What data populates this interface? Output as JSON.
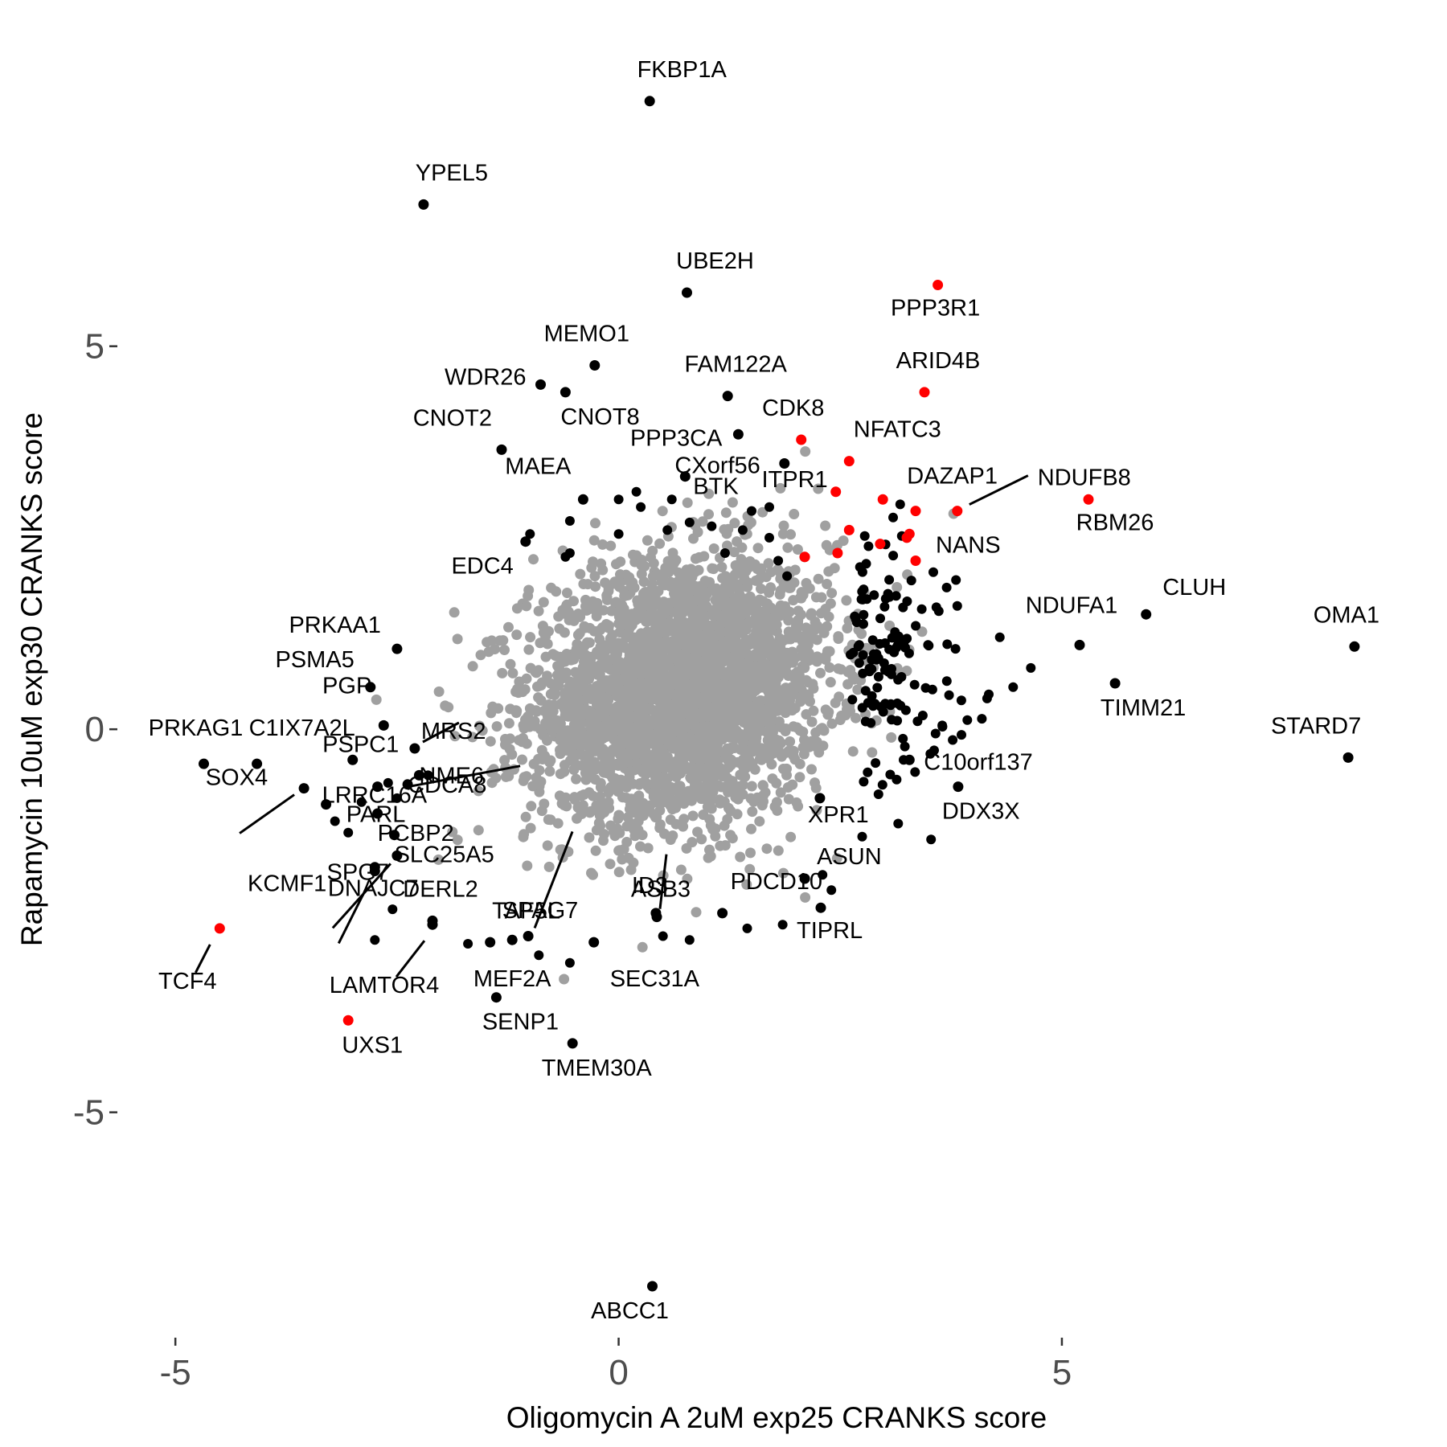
{
  "chart_data": {
    "type": "scatter",
    "xlabel": "Oligomycin A 2uM exp25 CRANKS score",
    "ylabel": "Rapamycin 10uM exp30 CRANKS score",
    "xlim": [
      -5.6,
      8.8
    ],
    "ylim": [
      -7.9,
      9.1
    ],
    "x_ticks": [
      -5,
      0,
      5
    ],
    "y_ticks": [
      -5,
      0,
      5
    ],
    "grid": false,
    "legend": "none",
    "colors": {
      "background": "#a0a0a0",
      "highlight": "#000000",
      "hit": "#ff0000"
    },
    "background_cloud": {
      "center": [
        0.7,
        0.5
      ],
      "spread": [
        0.85,
        0.85
      ],
      "count": 3200,
      "color": "#a0a0a0"
    },
    "labeled_points": [
      {
        "label": "FKBP1A",
        "x": 0.35,
        "y": 8.2,
        "color": "#000000"
      },
      {
        "label": "YPEL5",
        "x": -2.2,
        "y": 6.85,
        "color": "#000000"
      },
      {
        "label": "UBE2H",
        "x": 0.77,
        "y": 5.7,
        "color": "#000000"
      },
      {
        "label": "PPP3R1",
        "x": 3.6,
        "y": 5.8,
        "color": "#ff0000"
      },
      {
        "label": "MEMO1",
        "x": -0.27,
        "y": 4.75,
        "color": "#000000"
      },
      {
        "label": "WDR26",
        "x": -0.88,
        "y": 4.5,
        "color": "#000000"
      },
      {
        "label": "CNOT8",
        "x": -0.6,
        "y": 4.4,
        "color": "#000000"
      },
      {
        "label": "FAM122A",
        "x": 1.23,
        "y": 4.35,
        "color": "#000000"
      },
      {
        "label": "ARID4B",
        "x": 3.45,
        "y": 4.4,
        "color": "#ff0000"
      },
      {
        "label": "PPP3CA",
        "x": 1.35,
        "y": 3.85,
        "color": "#000000"
      },
      {
        "label": "CDK8",
        "x": 2.06,
        "y": 3.78,
        "color": "#ff0000"
      },
      {
        "label": "CNOT2",
        "x": -1.32,
        "y": 3.65,
        "color": "#000000"
      },
      {
        "label": "NFATC3",
        "x": 2.6,
        "y": 3.5,
        "color": "#ff0000"
      },
      {
        "label": "CXorf56",
        "x": 1.87,
        "y": 3.47,
        "color": "#000000"
      },
      {
        "label": "BTK",
        "x": 0.75,
        "y": 3.3,
        "color": "#000000"
      },
      {
        "label": "MAEA",
        "x": -0.4,
        "y": 3.0,
        "color": "#000000"
      },
      {
        "label": "ITPR1",
        "x": 2.45,
        "y": 3.1,
        "color": "#ff0000"
      },
      {
        "label": "DAZAP1",
        "x": 2.98,
        "y": 3.0,
        "color": "#ff0000"
      },
      {
        "label": "NDUFB8",
        "x": 3.82,
        "y": 2.85,
        "color": "#ff0000"
      },
      {
        "label": "RBM26",
        "x": 5.3,
        "y": 3.0,
        "color": "#ff0000"
      },
      {
        "label": "NANS",
        "x": 3.35,
        "y": 2.2,
        "color": "#ff0000"
      },
      {
        "label": "EDC4",
        "x": -1.05,
        "y": 2.45,
        "color": "#000000"
      },
      {
        "label": "CLUH",
        "x": 5.95,
        "y": 1.5,
        "color": "#000000"
      },
      {
        "label": "NDUFA1",
        "x": 5.2,
        "y": 1.1,
        "color": "#000000"
      },
      {
        "label": "OMA1",
        "x": 8.3,
        "y": 1.08,
        "color": "#000000"
      },
      {
        "label": "TIMM21",
        "x": 5.6,
        "y": 0.6,
        "color": "#000000"
      },
      {
        "label": "STARD7",
        "x": 8.23,
        "y": -0.37,
        "color": "#000000"
      },
      {
        "label": "PRKAA1",
        "x": -2.5,
        "y": 1.05,
        "color": "#000000"
      },
      {
        "label": "PSMA5",
        "x": -2.8,
        "y": 0.55,
        "color": "#000000"
      },
      {
        "label": "PGP",
        "x": -2.65,
        "y": 0.05,
        "color": "#000000"
      },
      {
        "label": "MRS2",
        "x": -2.3,
        "y": -0.25,
        "color": "#000000"
      },
      {
        "label": "NME6",
        "x": -2.25,
        "y": -0.6,
        "color": "#000000"
      },
      {
        "label": "CDCA8",
        "x": -2.38,
        "y": -0.72,
        "color": "#000000"
      },
      {
        "label": "PSPC1",
        "x": -3.0,
        "y": -0.4,
        "color": "#000000"
      },
      {
        "label": "PRKAG1",
        "x": -4.68,
        "y": -0.45,
        "color": "#000000"
      },
      {
        "label": "C1IX7A2L",
        "x": -4.08,
        "y": -0.45,
        "color": "#000000"
      },
      {
        "label": "PARL",
        "x": -2.72,
        "y": -0.75,
        "color": "#000000"
      },
      {
        "label": "SOX4",
        "x": -3.55,
        "y": -0.77,
        "color": "#000000"
      },
      {
        "label": "LRRC16A",
        "x": -3.3,
        "y": -0.98,
        "color": "#000000"
      },
      {
        "label": "PCBP2",
        "x": -2.72,
        "y": -1.1,
        "color": "#000000"
      },
      {
        "label": "TAF5L",
        "x": -1.02,
        "y": -2.7,
        "color": "#000000"
      },
      {
        "label": "SLC25A5",
        "x": -2.53,
        "y": -1.38,
        "color": "#000000"
      },
      {
        "label": "SPG7",
        "x": -2.5,
        "y": -1.65,
        "color": "#000000"
      },
      {
        "label": "DNAJC7",
        "x": -2.75,
        "y": -1.8,
        "color": "#000000"
      },
      {
        "label": "DERL2",
        "x": -2.1,
        "y": -2.5,
        "color": "#000000"
      },
      {
        "label": "SPAG7",
        "x": -1.45,
        "y": -2.78,
        "color": "#000000"
      },
      {
        "label": "ASB3",
        "x": 0.43,
        "y": -2.45,
        "color": "#000000"
      },
      {
        "label": "ID3",
        "x": 0.42,
        "y": -2.4,
        "color": "#000000"
      },
      {
        "label": "PDCD10",
        "x": 1.17,
        "y": -2.4,
        "color": "#000000"
      },
      {
        "label": "TIPRL",
        "x": 2.28,
        "y": -2.33,
        "color": "#000000"
      },
      {
        "label": "ASUN",
        "x": 2.1,
        "y": -1.95,
        "color": "#000000"
      },
      {
        "label": "XPR1",
        "x": 2.27,
        "y": -0.9,
        "color": "#000000"
      },
      {
        "label": "C10orf137",
        "x": 3.28,
        "y": -0.4,
        "color": "#000000"
      },
      {
        "label": "DDX3X",
        "x": 3.83,
        "y": -0.75,
        "color": "#000000"
      },
      {
        "label": "KCMF1",
        "x": -2.75,
        "y": -1.85,
        "color": "#000000"
      },
      {
        "label": "TCF4",
        "x": -4.5,
        "y": -2.6,
        "color": "#ff0000"
      },
      {
        "label": "LAMTOR4",
        "x": -2.1,
        "y": -2.55,
        "color": "#000000"
      },
      {
        "label": "MEF2A",
        "x": -1.2,
        "y": -2.75,
        "color": "#000000"
      },
      {
        "label": "SEC31A",
        "x": -0.28,
        "y": -2.78,
        "color": "#000000"
      },
      {
        "label": "UXS1",
        "x": -3.05,
        "y": -3.8,
        "color": "#ff0000"
      },
      {
        "label": "SENP1",
        "x": -1.38,
        "y": -3.5,
        "color": "#000000"
      },
      {
        "label": "TMEM30A",
        "x": -0.52,
        "y": -4.1,
        "color": "#000000"
      },
      {
        "label": "ABCC1",
        "x": 0.38,
        "y": -7.27,
        "color": "#000000"
      }
    ],
    "extra_hits": [
      [
        2.1,
        2.25
      ],
      [
        2.47,
        2.3
      ],
      [
        2.6,
        2.6
      ],
      [
        2.95,
        2.42
      ],
      [
        3.25,
        2.5
      ],
      [
        3.35,
        2.85
      ],
      [
        3.28,
        2.55
      ]
    ],
    "extra_black": [
      [
        -0.55,
        2.72
      ],
      [
        -0.55,
        2.3
      ],
      [
        -1.0,
        2.55
      ],
      [
        -0.6,
        2.25
      ],
      [
        0.0,
        3.0
      ],
      [
        0.2,
        3.1
      ],
      [
        0.25,
        2.9
      ],
      [
        0.6,
        3.0
      ],
      [
        0.55,
        2.6
      ],
      [
        0.8,
        2.7
      ],
      [
        1.05,
        2.65
      ],
      [
        0.0,
        2.55
      ],
      [
        1.2,
        2.3
      ],
      [
        1.5,
        2.85
      ],
      [
        1.4,
        2.6
      ],
      [
        1.7,
        2.9
      ],
      [
        1.7,
        2.5
      ],
      [
        1.9,
        2.0
      ],
      [
        1.8,
        2.2
      ],
      [
        3.55,
        2.05
      ],
      [
        3.7,
        1.85
      ],
      [
        2.8,
        1.7
      ],
      [
        3.0,
        1.6
      ],
      [
        3.8,
        1.05
      ],
      [
        4.3,
        1.2
      ],
      [
        4.45,
        0.55
      ],
      [
        4.65,
        0.8
      ],
      [
        2.3,
        -1.9
      ],
      [
        2.4,
        -2.1
      ],
      [
        3.65,
        0.05
      ],
      [
        -2.9,
        -0.95
      ],
      [
        -3.05,
        -1.35
      ],
      [
        -3.2,
        -1.2
      ],
      [
        -2.55,
        -2.35
      ],
      [
        -2.75,
        -2.75
      ],
      [
        -1.7,
        -2.8
      ],
      [
        -0.9,
        -2.95
      ],
      [
        -0.55,
        -3.05
      ],
      [
        0.8,
        -2.75
      ],
      [
        0.5,
        -2.7
      ],
      [
        1.45,
        -2.6
      ],
      [
        1.85,
        -2.55
      ],
      [
        -2.15,
        -0.6
      ],
      [
        -2.5,
        -0.9
      ],
      [
        -2.6,
        -0.7
      ]
    ],
    "right_cluster": {
      "center": [
        2.65,
        0.9
      ],
      "spread": [
        0.55,
        0.7
      ],
      "count": 130
    }
  }
}
